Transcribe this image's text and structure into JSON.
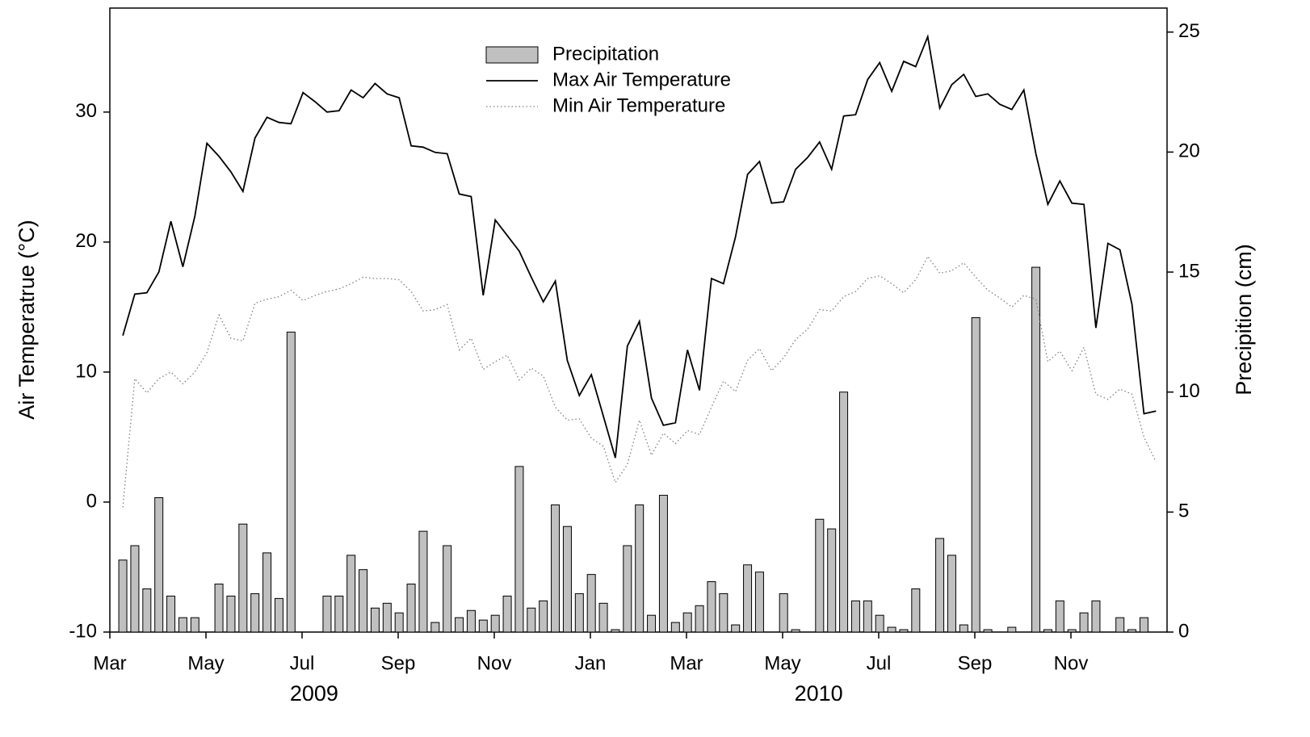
{
  "chart_data": {
    "type": "bar-line",
    "xlabel_groups": [
      {
        "value": 4.25,
        "label": "2009"
      },
      {
        "value": 14.75,
        "label": "2010"
      }
    ],
    "ylabel": "Air Temperatrue (°C)",
    "y2label": "Precipition (cm)",
    "x": [
      0.27,
      0.52,
      0.77,
      1.02,
      1.27,
      1.52,
      1.77,
      2.02,
      2.27,
      2.52,
      2.77,
      3.02,
      3.27,
      3.52,
      3.77,
      4.02,
      4.27,
      4.52,
      4.77,
      5.02,
      5.27,
      5.52,
      5.77,
      6.02,
      6.27,
      6.52,
      6.77,
      7.02,
      7.27,
      7.52,
      7.77,
      8.02,
      8.27,
      8.52,
      8.77,
      9.02,
      9.27,
      9.52,
      9.77,
      10.02,
      10.27,
      10.52,
      10.77,
      11.02,
      11.27,
      11.52,
      11.77,
      12.02,
      12.27,
      12.52,
      12.77,
      13.02,
      13.27,
      13.52,
      13.77,
      14.02,
      14.27,
      14.52,
      14.77,
      15.02,
      15.27,
      15.52,
      15.77,
      16.02,
      16.27,
      16.52,
      16.77,
      17.02,
      17.27,
      17.52,
      17.77,
      18.02,
      18.27,
      18.52,
      18.77,
      19.02,
      19.27,
      19.52,
      19.77,
      20.02,
      20.27,
      20.52,
      20.77,
      21.02,
      21.27,
      21.52,
      21.77
    ],
    "series": [
      {
        "name": "Precipitation",
        "kind": "bar",
        "axis": "y2",
        "color": "#c0c0c0",
        "values": [
          3.0,
          3.6,
          1.8,
          5.6,
          1.5,
          0.6,
          0.6,
          null,
          2.0,
          1.5,
          4.5,
          1.6,
          3.3,
          1.4,
          12.5,
          null,
          null,
          1.5,
          1.5,
          3.2,
          2.6,
          1.0,
          1.2,
          0.8,
          2.0,
          4.2,
          0.4,
          3.6,
          0.6,
          0.9,
          0.5,
          0.7,
          1.5,
          6.9,
          1.0,
          1.3,
          5.3,
          4.4,
          1.6,
          2.4,
          1.2,
          0.1,
          3.6,
          5.3,
          0.7,
          5.7,
          0.4,
          0.8,
          1.1,
          2.1,
          1.6,
          0.3,
          2.8,
          2.5,
          null,
          1.6,
          0.1,
          null,
          4.7,
          4.3,
          10.0,
          1.3,
          1.3,
          0.7,
          0.2,
          0.1,
          1.8,
          null,
          3.9,
          3.2,
          0.3,
          13.1,
          0.1,
          null,
          0.2,
          null,
          15.2,
          0.1,
          1.3,
          0.1,
          0.8,
          1.3,
          null,
          0.6,
          0.1,
          0.6,
          null
        ]
      },
      {
        "name": "Max Air Temperature",
        "kind": "line",
        "color": "#000000",
        "dash": "solid",
        "values": [
          12.8,
          16,
          16.1,
          17.7,
          21.6,
          18.1,
          22,
          27.6,
          26.6,
          25.4,
          23.9,
          28,
          29.6,
          29.2,
          29.1,
          31.5,
          30.8,
          30,
          30.1,
          31.7,
          31.1,
          32.2,
          31.4,
          31.1,
          27.4,
          27.3,
          26.9,
          26.8,
          23.7,
          23.5,
          15.9,
          21.7,
          20.5,
          19.3,
          17.3,
          15.4,
          17,
          10.9,
          8.2,
          9.8,
          6.6,
          3.4,
          12,
          13.9,
          8,
          5.9,
          6.1,
          11.7,
          8.6,
          17.2,
          16.8,
          20.4,
          25.2,
          26.2,
          23,
          23.1,
          25.6,
          26.5,
          27.7,
          25.6,
          29.7,
          29.8,
          32.5,
          33.8,
          31.6,
          33.9,
          33.5,
          35.8,
          30.3,
          32.1,
          32.9,
          31.2,
          31.4,
          30.6,
          30.2,
          31.7,
          26.8,
          22.9,
          24.7,
          23,
          22.9,
          13.4,
          19.9,
          19.4,
          15.2,
          6.8,
          7
        ]
      },
      {
        "name": "Min Air Temperature",
        "kind": "line",
        "color": "#808080",
        "dash": "dotted",
        "values": [
          -0.4,
          9.5,
          8.4,
          9.5,
          10,
          9.1,
          10,
          11.5,
          14.4,
          12.6,
          12.4,
          15.3,
          15.6,
          15.8,
          16.3,
          15.5,
          15.9,
          16.2,
          16.4,
          16.8,
          17.3,
          17.2,
          17.2,
          17.1,
          16.2,
          14.7,
          14.8,
          15.2,
          11.7,
          12.6,
          10.2,
          10.8,
          11.3,
          9.4,
          10.3,
          9.7,
          7.3,
          6.3,
          6.4,
          4.9,
          4.3,
          1.5,
          2.9,
          6.3,
          3.6,
          5.3,
          4.5,
          5.5,
          5.2,
          7.3,
          9.3,
          8.5,
          10.9,
          11.8,
          10.1,
          11.1,
          12.5,
          13.3,
          14.8,
          14.7,
          15.8,
          16.2,
          17.2,
          17.4,
          16.8,
          16.1,
          17.1,
          18.9,
          17.6,
          17.8,
          18.4,
          17.3,
          16.3,
          15.7,
          15,
          15.9,
          15.6,
          10.8,
          11.6,
          10.1,
          11.9,
          8.3,
          7.9,
          8.7,
          8.3,
          5,
          3.1
        ]
      }
    ],
    "xlim": [
      0,
      22
    ],
    "xticks": [
      {
        "value": 0,
        "label": "Mar"
      },
      {
        "value": 2,
        "label": "May"
      },
      {
        "value": 4,
        "label": "Jul"
      },
      {
        "value": 6,
        "label": "Sep"
      },
      {
        "value": 8,
        "label": "Nov"
      },
      {
        "value": 10,
        "label": "Jan"
      },
      {
        "value": 12,
        "label": "Mar"
      },
      {
        "value": 14,
        "label": "May"
      },
      {
        "value": 16,
        "label": "Jul"
      },
      {
        "value": 18,
        "label": "Sep"
      },
      {
        "value": 20,
        "label": "Nov"
      }
    ],
    "ylim": [
      -10,
      38
    ],
    "yticks": [
      -10,
      0,
      10,
      20,
      30
    ],
    "y2lim": [
      0,
      26
    ],
    "y2ticks": [
      0,
      5,
      10,
      15,
      20,
      25
    ],
    "grid": false,
    "legend": "upper center"
  }
}
